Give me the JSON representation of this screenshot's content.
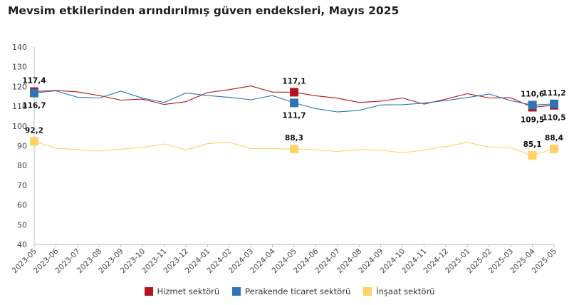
{
  "title": "Mevsim etkilerinden arındırılmış güven endeksleri, Mayıs 2025",
  "chart_data": {
    "type": "line",
    "title": "Mevsim etkilerinden arındırılmış güven endeksleri, Mayıs 2025",
    "xlabel": "",
    "ylabel": "",
    "ylim": [
      40,
      140
    ],
    "yticks": [
      40,
      50,
      60,
      70,
      80,
      90,
      100,
      110,
      120,
      130,
      140
    ],
    "grid": false,
    "legend_position": "bottom",
    "categories": [
      "2023-05",
      "2023-06",
      "2023-07",
      "2023-08",
      "2023-09",
      "2023-10",
      "2023-11",
      "2023-12",
      "2024-01",
      "2024-02",
      "2024-03",
      "2024-04",
      "2024-05",
      "2024-06",
      "2024-07",
      "2024-08",
      "2024-09",
      "2024-10",
      "2024-11",
      "2024-12",
      "2025-01",
      "2025-02",
      "2025-03",
      "2025-04",
      "2025-05"
    ],
    "series": [
      {
        "name": "Hizmet sektörü",
        "color": "#b5121b",
        "values": [
          117.4,
          118.0,
          117.3,
          115.4,
          113.1,
          113.6,
          110.9,
          112.3,
          116.9,
          118.4,
          120.3,
          117.2,
          117.1,
          115.3,
          114.1,
          111.9,
          112.6,
          114.2,
          111.1,
          113.6,
          116.4,
          114.2,
          114.3,
          109.5,
          110.5
        ],
        "markers": [
          {
            "index": 0,
            "label": "117,4",
            "pos": "above"
          },
          {
            "index": 12,
            "label": "117,1",
            "pos": "above"
          },
          {
            "index": 23,
            "label": "109,5",
            "pos": "below"
          },
          {
            "index": 24,
            "label": "110,5",
            "pos": "below"
          }
        ]
      },
      {
        "name": "Perakende ticaret sektörü",
        "color": "#2e75b6",
        "values": [
          116.7,
          117.8,
          114.6,
          114.2,
          117.6,
          114.1,
          111.9,
          116.7,
          115.4,
          114.5,
          113.3,
          115.4,
          111.7,
          108.8,
          107.1,
          107.9,
          110.7,
          110.8,
          111.6,
          112.9,
          114.4,
          116.2,
          112.8,
          110.6,
          111.2
        ],
        "markers": [
          {
            "index": 0,
            "label": "116,7",
            "pos": "below"
          },
          {
            "index": 12,
            "label": "111,7",
            "pos": "below"
          },
          {
            "index": 23,
            "label": "110,6",
            "pos": "above"
          },
          {
            "index": 24,
            "label": "111,2",
            "pos": "above"
          }
        ]
      },
      {
        "name": "İnşaat sektörü",
        "color": "#ffd166",
        "values": [
          92.2,
          88.8,
          88.1,
          87.3,
          88.3,
          89.1,
          90.9,
          87.9,
          91.0,
          91.8,
          88.6,
          88.6,
          88.3,
          88.0,
          87.1,
          88.1,
          87.8,
          86.4,
          87.8,
          89.6,
          91.7,
          89.3,
          88.9,
          85.1,
          88.4
        ],
        "markers": [
          {
            "index": 0,
            "label": "92,2",
            "pos": "above"
          },
          {
            "index": 12,
            "label": "88,3",
            "pos": "above"
          },
          {
            "index": 23,
            "label": "85,1",
            "pos": "above"
          },
          {
            "index": 24,
            "label": "88,4",
            "pos": "above"
          }
        ]
      }
    ]
  }
}
